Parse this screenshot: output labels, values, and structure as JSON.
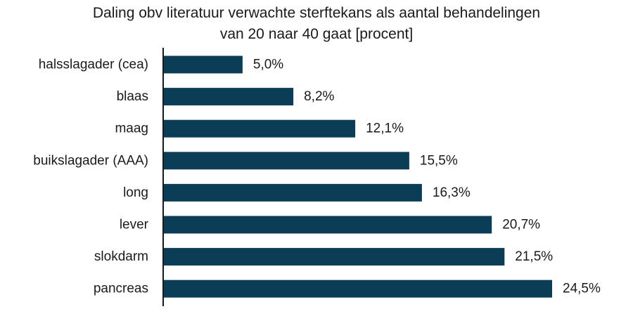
{
  "chart_data": {
    "type": "bar",
    "orientation": "horizontal",
    "title_lines": [
      "Daling obv literatuur verwachte sterftekans als aantal behandelingen",
      "van 20 naar 40 gaat [procent]"
    ],
    "categories": [
      "halsslagader (cea)",
      "blaas",
      "maag",
      "buikslagader (AAA)",
      "long",
      "lever",
      "slokdarm",
      "pancreas"
    ],
    "values": [
      5.0,
      8.2,
      12.1,
      15.5,
      16.3,
      20.7,
      21.5,
      24.5
    ],
    "value_labels": [
      "5,0%",
      "8,2%",
      "12,1%",
      "15,5%",
      "16,3%",
      "20,7%",
      "21,5%",
      "24,5%"
    ],
    "xlim": [
      0,
      24.5
    ],
    "grid": false,
    "legend": "none",
    "bar_color": "#0b3d57",
    "axis_color": "#1a1a1a"
  }
}
